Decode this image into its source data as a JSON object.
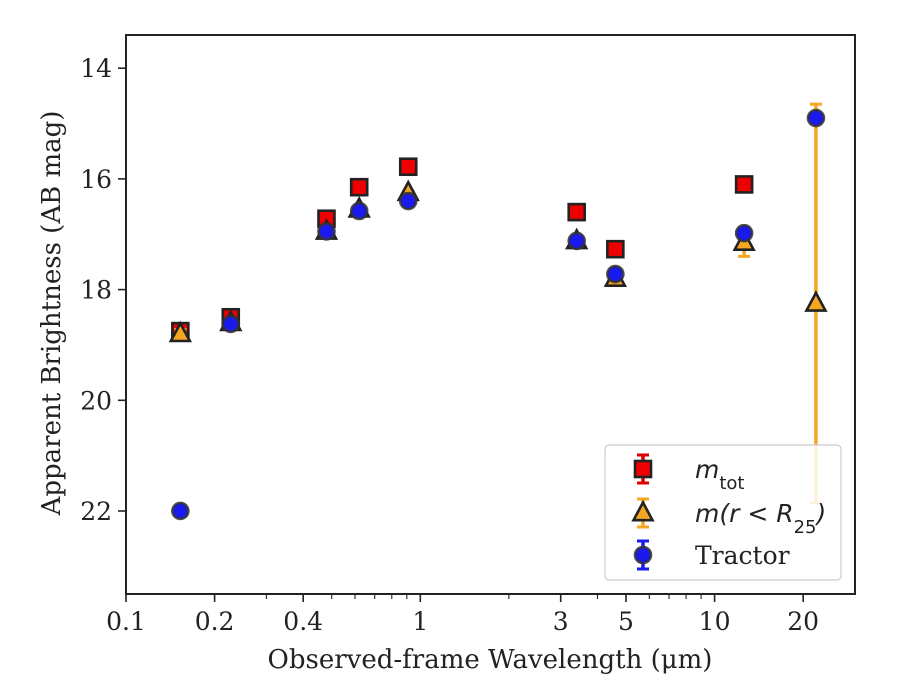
{
  "chart_data": {
    "type": "scatter",
    "title": "",
    "xlabel": "Observed-frame Wavelength (μm)",
    "ylabel": "Apparent Brightness (AB mag)",
    "xscale": "log",
    "xlim": [
      0.1,
      30
    ],
    "ylim": [
      23.5,
      13.4
    ],
    "y_inverted": true,
    "xticks": [
      {
        "value": 0.1,
        "label": "0.1"
      },
      {
        "value": 0.2,
        "label": "0.2"
      },
      {
        "value": 0.4,
        "label": "0.4"
      },
      {
        "value": 1,
        "label": "1"
      },
      {
        "value": 3,
        "label": "3"
      },
      {
        "value": 5,
        "label": "5"
      },
      {
        "value": 10,
        "label": "10"
      },
      {
        "value": 20,
        "label": "20"
      }
    ],
    "yticks": [
      {
        "value": 14,
        "label": "14"
      },
      {
        "value": 16,
        "label": "16"
      },
      {
        "value": 18,
        "label": "18"
      },
      {
        "value": 20,
        "label": "20"
      },
      {
        "value": 22,
        "label": "22"
      }
    ],
    "grid": false,
    "legend_position": "lower-right",
    "series": [
      {
        "name": "m_tot",
        "marker": "square",
        "color": "#ee0000",
        "edge_color": "#222222",
        "error_color": "#dd0000",
        "points": [
          {
            "x": 0.153,
            "y": 18.75,
            "err": 0.08
          },
          {
            "x": 0.227,
            "y": 18.5,
            "err": 0.05
          },
          {
            "x": 0.48,
            "y": 16.72,
            "err": 0.04
          },
          {
            "x": 0.62,
            "y": 16.15,
            "err": 0.04
          },
          {
            "x": 0.91,
            "y": 15.78,
            "err": 0.03
          },
          {
            "x": 3.4,
            "y": 16.6,
            "err": 0.03
          },
          {
            "x": 4.6,
            "y": 17.27,
            "err": 0.03
          },
          {
            "x": 12.6,
            "y": 16.1,
            "err": 0.05
          }
        ]
      },
      {
        "name": "m(r<R25)",
        "marker": "triangle",
        "color": "#f5a623",
        "edge_color": "#222222",
        "error_color": "#f5a623",
        "points": [
          {
            "x": 0.153,
            "y": 18.8,
            "err": 0.08
          },
          {
            "x": 0.227,
            "y": 18.6,
            "err": 0.05
          },
          {
            "x": 0.48,
            "y": 16.95,
            "err": 0.04
          },
          {
            "x": 0.62,
            "y": 16.55,
            "err": 0.04
          },
          {
            "x": 0.91,
            "y": 16.25,
            "err": 0.03
          },
          {
            "x": 3.4,
            "y": 17.12,
            "err": 0.03
          },
          {
            "x": 4.6,
            "y": 17.8,
            "err": 0.03
          },
          {
            "x": 12.6,
            "y": 17.15,
            "err": 0.25
          },
          {
            "x": 22.1,
            "y": 18.25,
            "err_low": 3.6,
            "err_high": 3.6
          }
        ]
      },
      {
        "name": "Tractor",
        "marker": "circle",
        "color": "#1a1aee",
        "edge_color": "#333333",
        "error_color": "#1a1aee",
        "points": [
          {
            "x": 0.153,
            "y": 22.0,
            "err": 0.08
          },
          {
            "x": 0.227,
            "y": 18.62,
            "err": 0.05
          },
          {
            "x": 0.48,
            "y": 16.95,
            "err": 0.04
          },
          {
            "x": 0.62,
            "y": 16.58,
            "err": 0.04
          },
          {
            "x": 0.91,
            "y": 16.4,
            "err": 0.03
          },
          {
            "x": 3.4,
            "y": 17.12,
            "err": 0.03
          },
          {
            "x": 4.6,
            "y": 17.72,
            "err": 0.03
          },
          {
            "x": 12.6,
            "y": 16.98,
            "err": 0.05
          },
          {
            "x": 22.1,
            "y": 14.9,
            "err": 0.05
          }
        ]
      }
    ]
  },
  "legend": {
    "entries": [
      {
        "main": "m",
        "sub": "tot",
        "tail": ""
      },
      {
        "main": "m(r < R",
        "sub": "25",
        "tail": ")"
      },
      {
        "main": "Tractor",
        "sub": "",
        "tail": ""
      }
    ]
  }
}
